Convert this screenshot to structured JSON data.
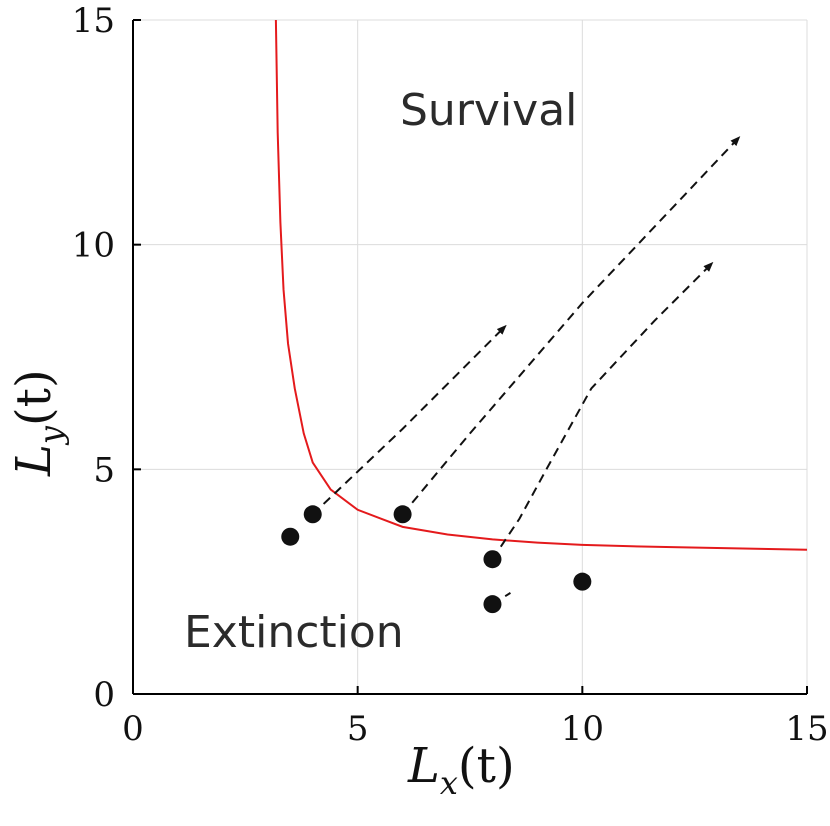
{
  "chart_data": {
    "type": "line",
    "title": "",
    "xlabel": {
      "main": "L",
      "sub": "x",
      "arg": "(t)"
    },
    "ylabel": {
      "main": "L",
      "sub": "y",
      "arg": "(t)"
    },
    "xlim": [
      0,
      15
    ],
    "ylim": [
      0,
      15
    ],
    "xticks": [
      0,
      5,
      10,
      15
    ],
    "yticks": [
      0,
      5,
      10,
      15
    ],
    "xtick_labels": [
      "0",
      "5",
      "10",
      "15"
    ],
    "ytick_labels": [
      "0",
      "5",
      "10",
      "15"
    ],
    "grid": true,
    "colors": {
      "boundary": "#e41a1c",
      "trajectory": "#111111",
      "grid": "#dcdcdc",
      "axis": "#000000"
    },
    "regions": [
      {
        "name": "Survival",
        "label": "Survival",
        "x": 6,
        "y": 13
      },
      {
        "name": "Extinction",
        "label": "Extinction",
        "x": 1.2,
        "y": 1.4
      }
    ],
    "boundary_curve": {
      "description": "survival/extinction threshold",
      "points": [
        [
          3.18,
          15
        ],
        [
          3.22,
          12.5
        ],
        [
          3.28,
          10.5
        ],
        [
          3.35,
          9
        ],
        [
          3.45,
          7.8
        ],
        [
          3.6,
          6.8
        ],
        [
          3.8,
          5.8
        ],
        [
          4.0,
          5.15
        ],
        [
          4.4,
          4.55
        ],
        [
          5.0,
          4.1
        ],
        [
          6.0,
          3.72
        ],
        [
          7.0,
          3.55
        ],
        [
          8.0,
          3.44
        ],
        [
          9.0,
          3.37
        ],
        [
          10.0,
          3.32
        ],
        [
          11.0,
          3.29
        ],
        [
          12.0,
          3.27
        ],
        [
          13.0,
          3.25
        ],
        [
          14.0,
          3.23
        ],
        [
          15.0,
          3.21
        ]
      ]
    },
    "trajectories": [
      {
        "start": [
          3.5,
          3.5
        ],
        "path": [
          [
            3.5,
            3.5
          ],
          [
            3.6,
            3.6
          ]
        ],
        "arrow": false
      },
      {
        "start": [
          4,
          4
        ],
        "path": [
          [
            4,
            4
          ],
          [
            6,
            5.9
          ],
          [
            8.3,
            8.2
          ]
        ],
        "arrow": true
      },
      {
        "start": [
          6,
          4
        ],
        "path": [
          [
            6,
            4
          ],
          [
            7.5,
            5.8
          ],
          [
            10,
            8.7
          ],
          [
            13.5,
            12.4
          ]
        ],
        "arrow": true
      },
      {
        "start": [
          8,
          3
        ],
        "path": [
          [
            8,
            3
          ],
          [
            8.6,
            3.9
          ],
          [
            9.2,
            5
          ],
          [
            10.2,
            6.8
          ],
          [
            11.6,
            8.3
          ],
          [
            12.9,
            9.6
          ]
        ],
        "arrow": true
      },
      {
        "start": [
          8,
          2
        ],
        "path": [
          [
            8,
            2
          ],
          [
            8.4,
            2.25
          ]
        ],
        "arrow": false
      },
      {
        "start": [
          10,
          2.5
        ],
        "path": [
          [
            10,
            2.5
          ],
          [
            10.25,
            2.7
          ]
        ],
        "arrow": false
      }
    ]
  }
}
